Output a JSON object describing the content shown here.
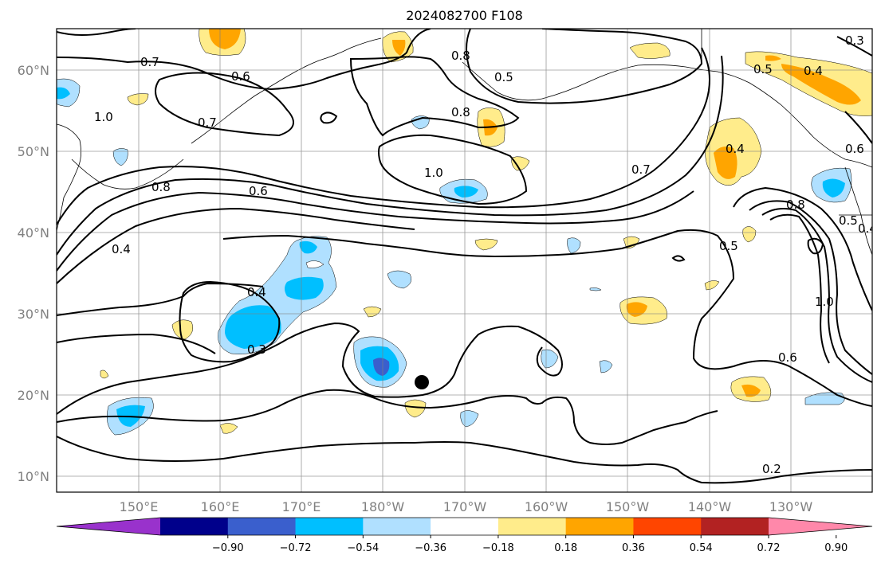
{
  "title": "2024082700 F108",
  "lat_labels": [
    "60°N",
    "50°N",
    "40°N",
    "30°N",
    "20°N",
    "10°N"
  ],
  "lon_labels": [
    "150°E",
    "160°E",
    "170°E",
    "180°W",
    "170°W",
    "160°W",
    "150°W",
    "140°W",
    "130°W"
  ],
  "colorbar": {
    "tick_labels": [
      "−0.90",
      "−0.72",
      "−0.54",
      "−0.36",
      "−0.18",
      "0.18",
      "0.36",
      "0.54",
      "0.72",
      "0.90"
    ],
    "colors": [
      "#9932cc",
      "#00008b",
      "#3a5fcd",
      "#00bfff",
      "#b0e0ff",
      "#ffffff",
      "#ffec8b",
      "#ffa500",
      "#ff4500",
      "#b22222",
      "#ff88aa"
    ]
  },
  "contour_labels": [
    "0.7",
    "0.6",
    "0.8",
    "0.3",
    "0.4",
    "0.5",
    "1.0",
    "0.7",
    "0.8",
    "1.0",
    "0.8",
    "0.6",
    "0.4",
    "0.4",
    "0.5",
    "0.7",
    "0.8",
    "0.4",
    "0.3",
    "0.5",
    "1.0",
    "0.6",
    "0.2",
    "0.5",
    "0.6",
    "0.4"
  ],
  "marker": "storm-position"
}
